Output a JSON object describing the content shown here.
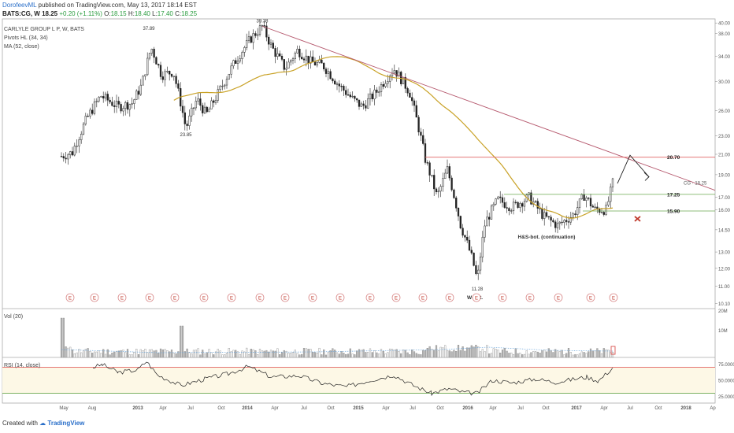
{
  "header": {
    "author": "DorofeevML",
    "published": "published on TradingView.com, May 13, 2017 18:14 EST",
    "symbol": "BATS:CG, W",
    "last": "18.25",
    "change": "+0.20 (+1.11%)",
    "o_label": "O:",
    "o": "18.15",
    "h_label": "H:",
    "h": "18.40",
    "l_label": "L:",
    "l": "17.40",
    "c_label": "C:",
    "c": "18.25"
  },
  "legend": {
    "title": "CARLYLE GROUP L P, W, BATS",
    "pivots": "Pivots HL (34, 34)",
    "ma": "MA (52, close)",
    "vol": "Vol (20)",
    "rsi": "RSI (14, close)"
  },
  "footer": {
    "created": "Created with",
    "brand": "TradingView"
  },
  "colors": {
    "trendline": "#b5576c",
    "ma": "#c9a227",
    "res": "#e06464",
    "sup": "#6aa84f",
    "candle": "#222222",
    "cross": "#c0392b",
    "rsi_upper": "#e06464",
    "rsi_lower": "#6aa84f",
    "rsi_band": "#fdf8e6",
    "vol_bar": "#b3b3b3",
    "vol_ma": "#6fa8dc"
  },
  "chart_data": {
    "type": "candlestick",
    "y_scale": "log",
    "price_ticks": [
      "40.00",
      "38.00",
      "34.00",
      "30.00",
      "26.00",
      "23.00",
      "21.00",
      "19.00",
      "17.00",
      "16.00",
      "14.50",
      "13.00",
      "12.00",
      "11.00",
      "10.10"
    ],
    "x_ticks": [
      "May",
      "Aug",
      "2013",
      "Apr",
      "Jul",
      "Oct",
      "2014",
      "Apr",
      "Jul",
      "Oct",
      "2015",
      "Apr",
      "Jul",
      "Oct",
      "2016",
      "Apr",
      "Jul",
      "Oct",
      "2017",
      "Apr",
      "Jul",
      "Oct",
      "2018",
      "Ap"
    ],
    "vol_ticks": [
      "20M",
      "10M"
    ],
    "rsi_ticks": [
      "75.0000",
      "50.0000",
      "25.0000"
    ],
    "pivot_labels": [
      {
        "text": "37.89",
        "value": 37.89
      },
      {
        "text": "39.38",
        "value": 39.38
      },
      {
        "text": "23.85",
        "value": 23.85
      },
      {
        "text": "11.28",
        "value": 11.28
      }
    ],
    "levels": [
      {
        "label": "20.70",
        "value": 20.7,
        "kind": "resistance"
      },
      {
        "label": "17.25",
        "value": 17.25,
        "kind": "support"
      },
      {
        "label": "15.90",
        "value": 15.9,
        "kind": "support"
      }
    ],
    "last_price_label": "CG · 18.25",
    "annotations": [
      {
        "text": "H&S-bot. (continuation)"
      },
      {
        "text": "W-bot."
      }
    ],
    "earnings_marker": "E",
    "rsi_levels": [
      70,
      30
    ]
  }
}
